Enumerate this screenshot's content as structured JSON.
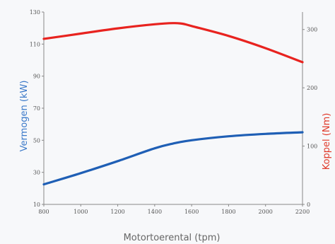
{
  "chart_data": {
    "type": "line",
    "xlabel": "Motortoerental (tpm)",
    "ylabel_left": "Vermogen (kW)",
    "ylabel_right": "Koppel (Nm)",
    "x_ticks": [
      800,
      1000,
      1200,
      1400,
      1600,
      1800,
      2000,
      2200
    ],
    "y_left_ticks": [
      10,
      30,
      50,
      70,
      90,
      110,
      130
    ],
    "y_right_ticks": [
      0,
      100,
      200,
      300
    ],
    "xlim": [
      800,
      2200
    ],
    "ylim_left": [
      10,
      130
    ],
    "ylim_right": [
      0,
      330
    ],
    "grid": false,
    "colors": {
      "left_axis": "#3b79c9",
      "right_axis": "#e03a2b",
      "power": "#1f5fb5",
      "torque": "#e8231f"
    },
    "series": [
      {
        "key": "power",
        "axis": "left",
        "x": [
          800,
          1000,
          1200,
          1400,
          1500,
          1600,
          1800,
          2000,
          2200
        ],
        "y": [
          22.5,
          29.5,
          37,
          45,
          48,
          50,
          52.5,
          54,
          55
        ]
      },
      {
        "key": "torque",
        "axis": "right",
        "x": [
          800,
          1000,
          1200,
          1400,
          1500,
          1550,
          1600,
          1800,
          2000,
          2200
        ],
        "y": [
          284,
          293,
          302,
          309,
          311,
          310,
          306,
          289,
          268,
          244
        ]
      }
    ]
  }
}
